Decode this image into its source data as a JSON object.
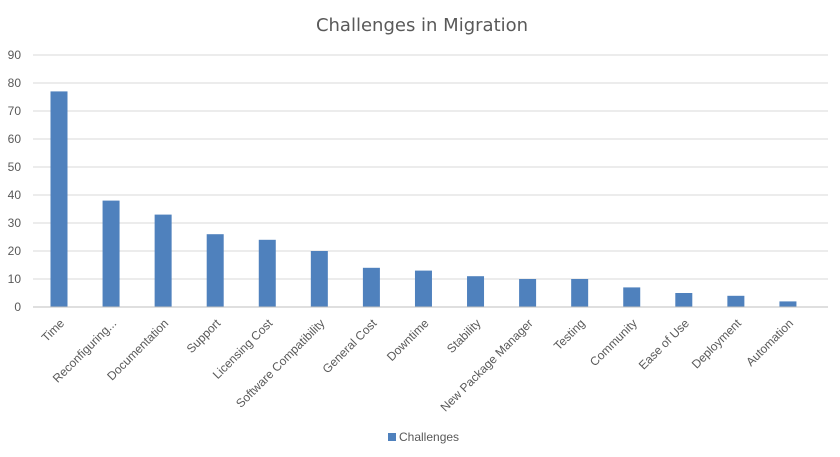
{
  "chart_data": {
    "type": "bar",
    "title": "Challenges in Migration",
    "xlabel": "",
    "ylabel": "",
    "categories": [
      "Time",
      "Reconfiguring...",
      "Documentation",
      "Support",
      "Licensing Cost",
      "Software Compatibility",
      "General Cost",
      "Downtime",
      "Stability",
      "New Package Manager",
      "Testing",
      "Community",
      "Ease of Use",
      "Deployment",
      "Automation"
    ],
    "series": [
      {
        "name": "Challenges",
        "values": [
          77,
          38,
          33,
          26,
          24,
          20,
          14,
          13,
          11,
          10,
          10,
          7,
          5,
          4,
          2
        ]
      }
    ],
    "ylim": [
      0,
      90
    ],
    "yticks": [
      0,
      10,
      20,
      30,
      40,
      50,
      60,
      70,
      80,
      90
    ],
    "grid": true,
    "legend_position": "bottom",
    "colors": {
      "bar": "#4f81bd"
    }
  }
}
